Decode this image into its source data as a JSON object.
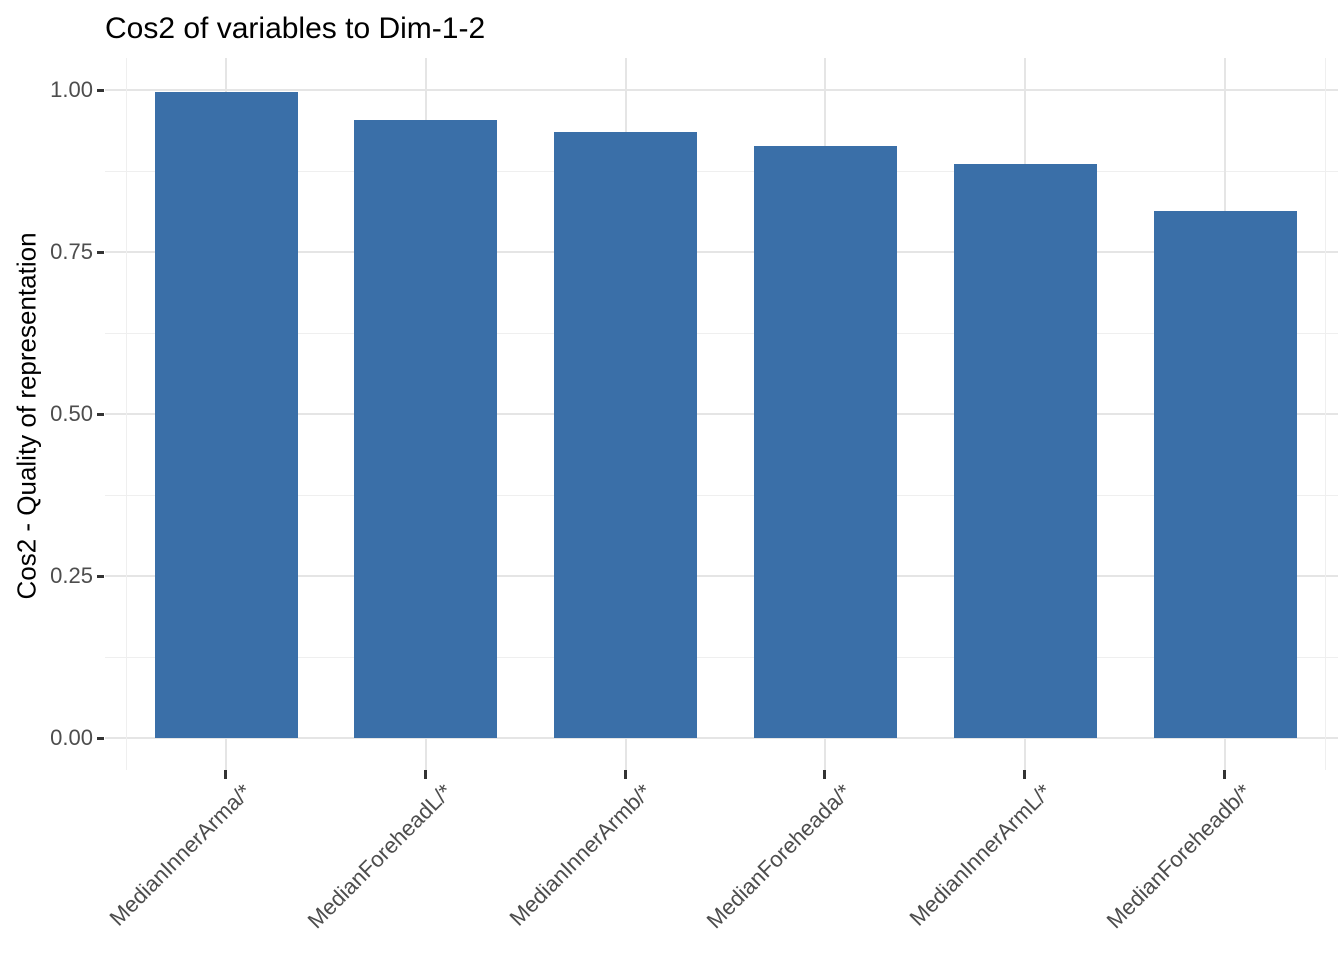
{
  "chart_data": {
    "type": "bar",
    "title": "Cos2 of variables to Dim-1-2",
    "categories": [
      "MedianInnerArma/*",
      "MedianForeheadL/*",
      "MedianInnerArmb/*",
      "MedianForeheada/*",
      "MedianInnerArmL/*",
      "MedianForeheadb/*"
    ],
    "values": [
      0.997,
      0.954,
      0.935,
      0.913,
      0.886,
      0.813
    ],
    "xlabel": "",
    "ylabel": "Cos2 - Quality of representation",
    "ylim": [
      0,
      1.05
    ],
    "yticks": [
      0,
      0.25,
      0.5,
      0.75,
      1
    ],
    "ytick_labels": [
      "0.00",
      "0.25",
      "0.50",
      "0.75",
      "1.00"
    ],
    "yminor_ticks": [
      0.125,
      0.375,
      0.625,
      0.875
    ],
    "grid": true,
    "legend_position": "none",
    "bar_color": "#3A6FA8"
  },
  "colors": {
    "bar": "#3A6FA8",
    "grid_major": "#e5e5e5",
    "grid_minor": "#efefef",
    "tick_mark": "#333333",
    "axis_text": "#4d4d4d",
    "title_text": "#000000",
    "background": "#ffffff"
  }
}
